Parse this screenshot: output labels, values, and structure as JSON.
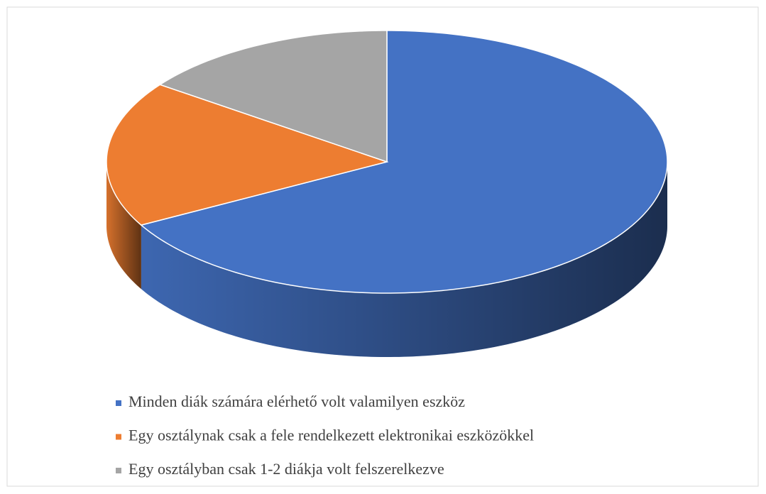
{
  "chart_data": {
    "type": "pie",
    "categories": [
      "Minden diák számára elérhető volt valamilyen eszköz",
      "Egy osztálynak csak a fele rendelkezett elektronikai eszközökkel",
      "Egy osztályban csak 1-2 diákja volt felszerelkezve"
    ],
    "values": [
      67,
      18,
      15
    ],
    "colors": [
      "#4472c4",
      "#ed7d31",
      "#a5a5a5"
    ],
    "legend": "bottom"
  }
}
